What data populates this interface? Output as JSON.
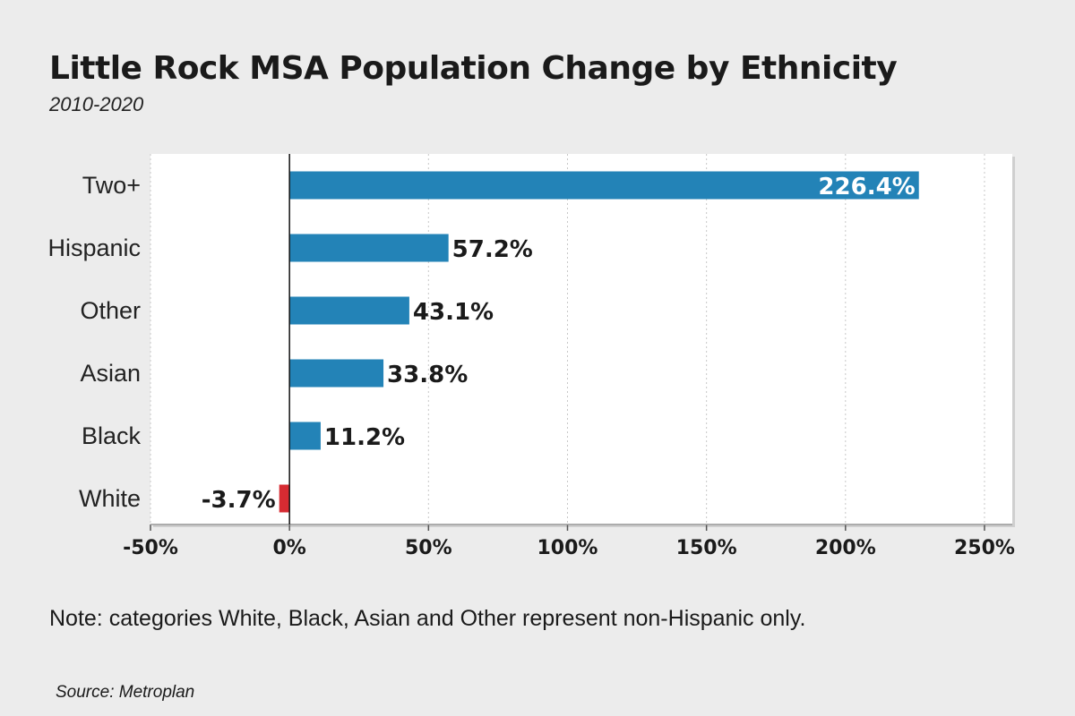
{
  "header": {
    "title": "Little Rock MSA Population Change by Ethnicity",
    "subtitle": "2010-2020"
  },
  "footer": {
    "note": "Note: categories White, Black, Asian and Other represent non-Hispanic only.",
    "source": "Source: Metroplan"
  },
  "colors": {
    "positive": "#2383b7",
    "negative": "#d62b32",
    "gridline": "#c8c8c8",
    "plot_background": "#ffffff"
  },
  "chart_data": {
    "type": "bar",
    "orientation": "horizontal",
    "categories": [
      "Two+",
      "Hispanic",
      "Other",
      "Asian",
      "Black",
      "White"
    ],
    "values": [
      226.4,
      57.2,
      43.1,
      33.8,
      11.2,
      -3.7
    ],
    "value_labels": [
      "226.4%",
      "57.2%",
      "43.1%",
      "33.8%",
      "11.2%",
      "-3.7%"
    ],
    "xlim": [
      -50,
      260
    ],
    "xticks": [
      -50,
      0,
      50,
      100,
      150,
      200,
      250
    ],
    "xtick_labels": [
      "-50%",
      "0%",
      "50%",
      "100%",
      "150%",
      "200%",
      "250%"
    ],
    "grid": true,
    "legend": "none"
  }
}
